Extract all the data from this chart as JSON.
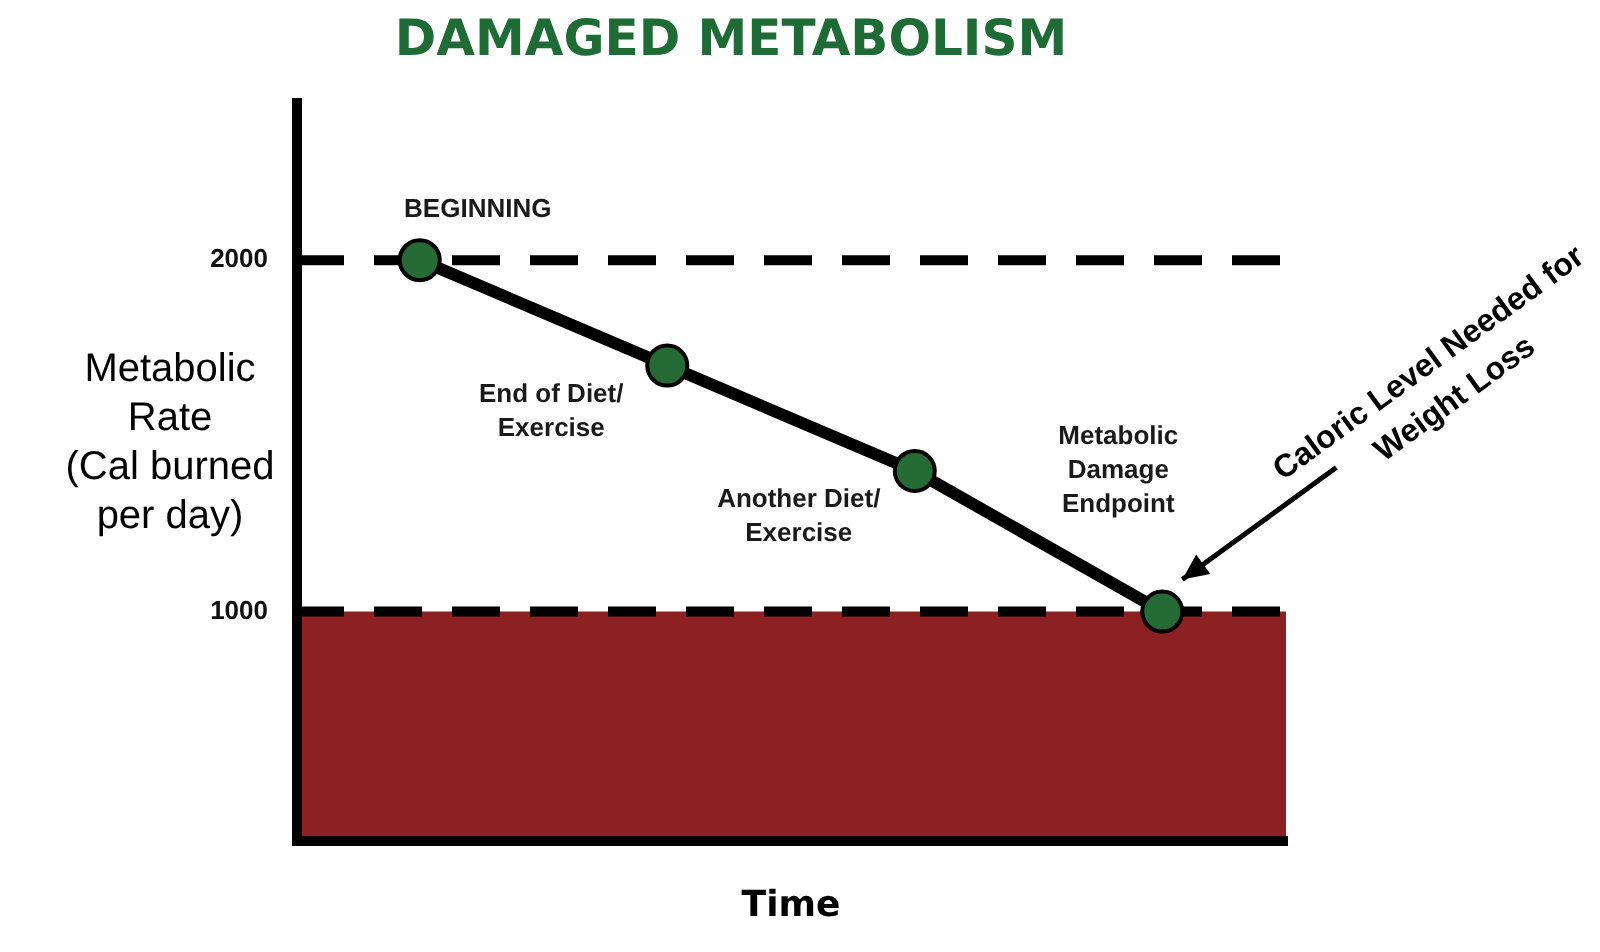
{
  "chart_data": {
    "type": "line",
    "title": "DAMAGED METABOLISM",
    "xlabel": "Time",
    "ylabel": "Metabolic\nRate\n(Cal burned\nper day)",
    "categories": [
      null,
      null,
      null,
      null
    ],
    "series": [
      {
        "color": "#000000",
        "colors": [
          "#256b35",
          "#256b35",
          "#256b35",
          "#256b35"
        ],
        "values": [
          2000,
          1700,
          1400,
          1000
        ],
        "value_labels": [
          "BEGINNING",
          "End of Diet/\nExercise",
          "Another Diet/\nExercise",
          "Metabolic\nDamage\nEndpoint"
        ]
      }
    ],
    "ylim": [
      350,
      2450
    ],
    "yticks": [
      2000,
      1000
    ],
    "tick_labels": "y",
    "marker": "circle",
    "ref_lines": [
      {
        "axis": "y",
        "value": 2000,
        "color": "#000000",
        "line_style": "dashed"
      },
      {
        "axis": "y",
        "value": 1000,
        "color": "#000000",
        "line_style": "dashed"
      }
    ],
    "bands": [
      {
        "axis": "y",
        "from": 350,
        "to": 1000,
        "color": "#8c2023"
      }
    ],
    "annotations": [
      "Caloric Level Needed for\nWeight Loss"
    ]
  }
}
